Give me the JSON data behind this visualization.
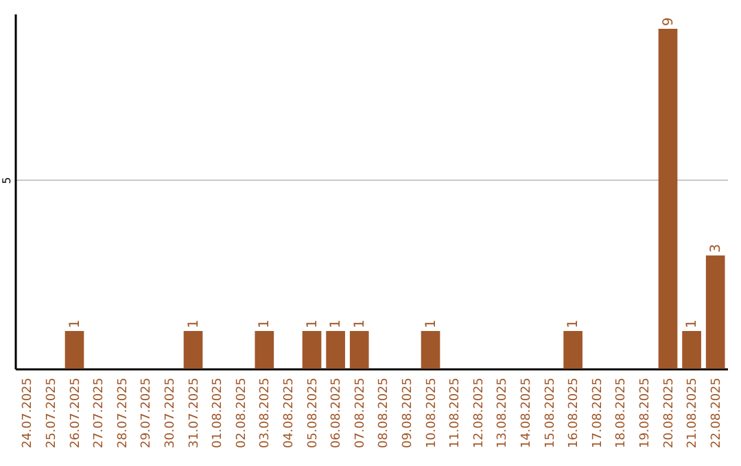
{
  "chart_data": {
    "type": "bar",
    "categories": [
      "24.07.2025",
      "25.07.2025",
      "26.07.2025",
      "27.07.2025",
      "28.07.2025",
      "29.07.2025",
      "30.07.2025",
      "31.07.2025",
      "01.08.2025",
      "02.08.2025",
      "03.08.2025",
      "04.08.2025",
      "05.08.2025",
      "06.08.2025",
      "07.08.2025",
      "08.08.2025",
      "09.08.2025",
      "10.08.2025",
      "11.08.2025",
      "12.08.2025",
      "13.08.2025",
      "14.08.2025",
      "15.08.2025",
      "16.08.2025",
      "17.08.2025",
      "18.08.2025",
      "19.08.2025",
      "20.08.2025",
      "21.08.2025",
      "22.08.2025"
    ],
    "values": [
      0,
      0,
      1,
      0,
      0,
      0,
      0,
      1,
      0,
      0,
      1,
      0,
      1,
      1,
      1,
      0,
      0,
      1,
      0,
      0,
      0,
      0,
      0,
      1,
      0,
      0,
      0,
      9,
      1,
      3
    ],
    "value_labels": [
      null,
      null,
      "1",
      null,
      null,
      null,
      null,
      "1",
      null,
      null,
      "1",
      null,
      "1",
      "1",
      "1",
      null,
      null,
      "1",
      null,
      null,
      null,
      null,
      null,
      "1",
      null,
      null,
      null,
      "9",
      "1",
      "3"
    ],
    "color": "#a0572a",
    "ylim": [
      0,
      9.4
    ],
    "yticks": [
      5
    ],
    "grid": "y"
  }
}
